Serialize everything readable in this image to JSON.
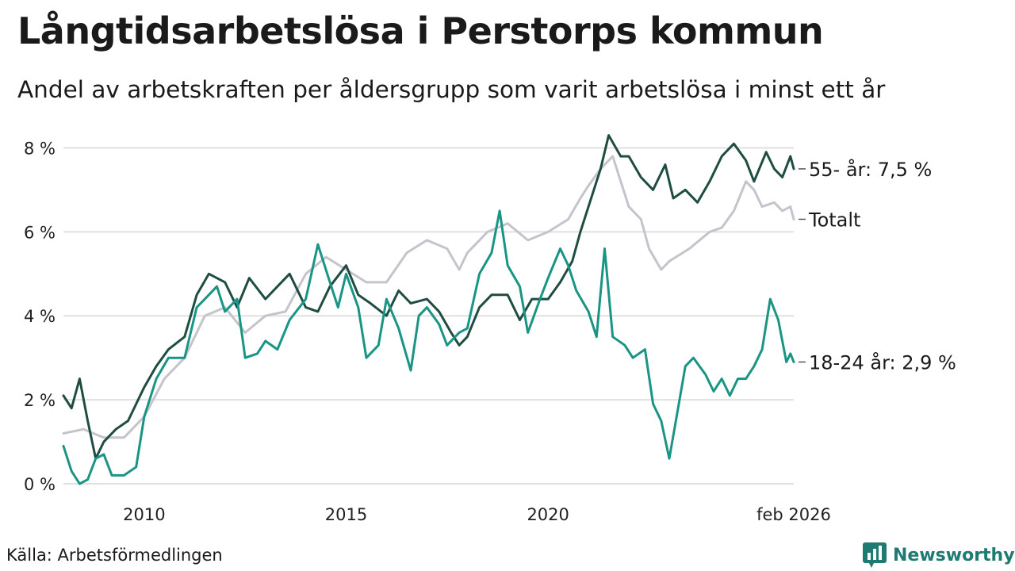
{
  "title": "Långtidsarbetslösa i Perstorps kommun",
  "subtitle": "Andel av arbetskraften per åldersgrupp som varit arbetslösa i minst ett år",
  "source": "Källa: Arbetsförmedlingen",
  "brand": "Newsworthy",
  "colors": {
    "brand": "#1f7a72",
    "grid": "#e0e0e0"
  },
  "chart_data": {
    "type": "line",
    "x_start": 2008.0,
    "x_end": 2026.0833,
    "xlim": [
      2008.0,
      2026.0833
    ],
    "ylim": [
      0,
      8.5
    ],
    "y_ticks": [
      {
        "value": 0,
        "label": "0 %"
      },
      {
        "value": 2,
        "label": "2 %"
      },
      {
        "value": 4,
        "label": "4 %"
      },
      {
        "value": 6,
        "label": "6 %"
      },
      {
        "value": 8,
        "label": "8 %"
      }
    ],
    "x_ticks": [
      {
        "value": 2010,
        "label": "2010"
      },
      {
        "value": 2015,
        "label": "2015"
      },
      {
        "value": 2020,
        "label": "2020"
      },
      {
        "value": 2026.0833,
        "label": "feb 2026"
      }
    ],
    "grid": true,
    "series": [
      {
        "name": "Totalt",
        "label": "Totalt",
        "color": "#c4c4cc",
        "points": [
          [
            2008.0,
            1.2
          ],
          [
            2008.5,
            1.3
          ],
          [
            2009.0,
            1.1
          ],
          [
            2009.5,
            1.1
          ],
          [
            2010.0,
            1.6
          ],
          [
            2010.5,
            2.5
          ],
          [
            2011.0,
            3.0
          ],
          [
            2011.5,
            4.0
          ],
          [
            2012.0,
            4.2
          ],
          [
            2012.5,
            3.6
          ],
          [
            2013.0,
            4.0
          ],
          [
            2013.5,
            4.1
          ],
          [
            2014.0,
            5.0
          ],
          [
            2014.5,
            5.4
          ],
          [
            2015.0,
            5.1
          ],
          [
            2015.5,
            4.8
          ],
          [
            2016.0,
            4.8
          ],
          [
            2016.5,
            5.5
          ],
          [
            2017.0,
            5.8
          ],
          [
            2017.5,
            5.6
          ],
          [
            2017.8,
            5.1
          ],
          [
            2018.0,
            5.5
          ],
          [
            2018.5,
            6.0
          ],
          [
            2019.0,
            6.2
          ],
          [
            2019.5,
            5.8
          ],
          [
            2020.0,
            6.0
          ],
          [
            2020.5,
            6.3
          ],
          [
            2020.8,
            6.8
          ],
          [
            2021.0,
            7.1
          ],
          [
            2021.3,
            7.5
          ],
          [
            2021.6,
            7.8
          ],
          [
            2022.0,
            6.6
          ],
          [
            2022.3,
            6.3
          ],
          [
            2022.5,
            5.6
          ],
          [
            2022.8,
            5.1
          ],
          [
            2023.0,
            5.3
          ],
          [
            2023.5,
            5.6
          ],
          [
            2024.0,
            6.0
          ],
          [
            2024.3,
            6.1
          ],
          [
            2024.6,
            6.5
          ],
          [
            2024.9,
            7.2
          ],
          [
            2025.1,
            7.0
          ],
          [
            2025.3,
            6.6
          ],
          [
            2025.6,
            6.7
          ],
          [
            2025.8,
            6.5
          ],
          [
            2026.0,
            6.6
          ],
          [
            2026.0833,
            6.3
          ]
        ],
        "end_value_label": "Totalt"
      },
      {
        "name": "55- år",
        "label": "55- år: 7,5 %",
        "color": "#1f4d41",
        "points": [
          [
            2008.0,
            2.1
          ],
          [
            2008.2,
            1.8
          ],
          [
            2008.4,
            2.5
          ],
          [
            2008.6,
            1.5
          ],
          [
            2008.8,
            0.6
          ],
          [
            2009.0,
            1.0
          ],
          [
            2009.3,
            1.3
          ],
          [
            2009.6,
            1.5
          ],
          [
            2010.0,
            2.3
          ],
          [
            2010.3,
            2.8
          ],
          [
            2010.6,
            3.2
          ],
          [
            2011.0,
            3.5
          ],
          [
            2011.3,
            4.5
          ],
          [
            2011.6,
            5.0
          ],
          [
            2012.0,
            4.8
          ],
          [
            2012.3,
            4.2
          ],
          [
            2012.6,
            4.9
          ],
          [
            2013.0,
            4.4
          ],
          [
            2013.3,
            4.7
          ],
          [
            2013.6,
            5.0
          ],
          [
            2014.0,
            4.2
          ],
          [
            2014.3,
            4.1
          ],
          [
            2014.6,
            4.7
          ],
          [
            2015.0,
            5.2
          ],
          [
            2015.3,
            4.5
          ],
          [
            2015.6,
            4.3
          ],
          [
            2016.0,
            4.0
          ],
          [
            2016.3,
            4.6
          ],
          [
            2016.6,
            4.3
          ],
          [
            2017.0,
            4.4
          ],
          [
            2017.3,
            4.1
          ],
          [
            2017.6,
            3.6
          ],
          [
            2017.8,
            3.3
          ],
          [
            2018.0,
            3.5
          ],
          [
            2018.3,
            4.2
          ],
          [
            2018.6,
            4.5
          ],
          [
            2019.0,
            4.5
          ],
          [
            2019.3,
            3.9
          ],
          [
            2019.6,
            4.4
          ],
          [
            2020.0,
            4.4
          ],
          [
            2020.3,
            4.8
          ],
          [
            2020.6,
            5.3
          ],
          [
            2020.8,
            6.0
          ],
          [
            2021.0,
            6.6
          ],
          [
            2021.3,
            7.5
          ],
          [
            2021.5,
            8.3
          ],
          [
            2021.8,
            7.8
          ],
          [
            2022.0,
            7.8
          ],
          [
            2022.3,
            7.3
          ],
          [
            2022.6,
            7.0
          ],
          [
            2022.9,
            7.6
          ],
          [
            2023.1,
            6.8
          ],
          [
            2023.4,
            7.0
          ],
          [
            2023.7,
            6.7
          ],
          [
            2024.0,
            7.2
          ],
          [
            2024.3,
            7.8
          ],
          [
            2024.6,
            8.1
          ],
          [
            2024.9,
            7.7
          ],
          [
            2025.1,
            7.2
          ],
          [
            2025.4,
            7.9
          ],
          [
            2025.6,
            7.5
          ],
          [
            2025.8,
            7.3
          ],
          [
            2026.0,
            7.8
          ],
          [
            2026.0833,
            7.5
          ]
        ],
        "end_value_label": "55- år: 7,5 %"
      },
      {
        "name": "18-24 år",
        "label": "18-24 år: 2,9 %",
        "color": "#1a9484",
        "points": [
          [
            2008.0,
            0.9
          ],
          [
            2008.2,
            0.3
          ],
          [
            2008.4,
            0.0
          ],
          [
            2008.6,
            0.1
          ],
          [
            2008.8,
            0.6
          ],
          [
            2009.0,
            0.7
          ],
          [
            2009.2,
            0.2
          ],
          [
            2009.5,
            0.2
          ],
          [
            2009.8,
            0.4
          ],
          [
            2010.0,
            1.6
          ],
          [
            2010.3,
            2.5
          ],
          [
            2010.6,
            3.0
          ],
          [
            2011.0,
            3.0
          ],
          [
            2011.3,
            4.2
          ],
          [
            2011.6,
            4.5
          ],
          [
            2011.8,
            4.7
          ],
          [
            2012.0,
            4.1
          ],
          [
            2012.3,
            4.4
          ],
          [
            2012.5,
            3.0
          ],
          [
            2012.8,
            3.1
          ],
          [
            2013.0,
            3.4
          ],
          [
            2013.3,
            3.2
          ],
          [
            2013.6,
            3.9
          ],
          [
            2014.0,
            4.4
          ],
          [
            2014.3,
            5.7
          ],
          [
            2014.6,
            4.8
          ],
          [
            2014.8,
            4.2
          ],
          [
            2015.0,
            5.0
          ],
          [
            2015.3,
            4.2
          ],
          [
            2015.5,
            3.0
          ],
          [
            2015.8,
            3.3
          ],
          [
            2016.0,
            4.4
          ],
          [
            2016.3,
            3.7
          ],
          [
            2016.6,
            2.7
          ],
          [
            2016.8,
            4.0
          ],
          [
            2017.0,
            4.2
          ],
          [
            2017.3,
            3.8
          ],
          [
            2017.5,
            3.3
          ],
          [
            2017.8,
            3.6
          ],
          [
            2018.0,
            3.7
          ],
          [
            2018.3,
            5.0
          ],
          [
            2018.6,
            5.5
          ],
          [
            2018.8,
            6.5
          ],
          [
            2019.0,
            5.2
          ],
          [
            2019.3,
            4.7
          ],
          [
            2019.5,
            3.6
          ],
          [
            2019.8,
            4.4
          ],
          [
            2020.0,
            4.9
          ],
          [
            2020.3,
            5.6
          ],
          [
            2020.5,
            5.2
          ],
          [
            2020.7,
            4.6
          ],
          [
            2021.0,
            4.1
          ],
          [
            2021.2,
            3.5
          ],
          [
            2021.4,
            5.6
          ],
          [
            2021.6,
            3.5
          ],
          [
            2021.9,
            3.3
          ],
          [
            2022.1,
            3.0
          ],
          [
            2022.4,
            3.2
          ],
          [
            2022.6,
            1.9
          ],
          [
            2022.8,
            1.5
          ],
          [
            2023.0,
            0.6
          ],
          [
            2023.2,
            1.7
          ],
          [
            2023.4,
            2.8
          ],
          [
            2023.6,
            3.0
          ],
          [
            2023.9,
            2.6
          ],
          [
            2024.1,
            2.2
          ],
          [
            2024.3,
            2.5
          ],
          [
            2024.5,
            2.1
          ],
          [
            2024.7,
            2.5
          ],
          [
            2024.9,
            2.5
          ],
          [
            2025.1,
            2.8
          ],
          [
            2025.3,
            3.2
          ],
          [
            2025.5,
            4.4
          ],
          [
            2025.7,
            3.9
          ],
          [
            2025.9,
            2.9
          ],
          [
            2026.0,
            3.1
          ],
          [
            2026.0833,
            2.9
          ]
        ],
        "end_value_label": "18-24 år: 2,9 %"
      }
    ]
  }
}
